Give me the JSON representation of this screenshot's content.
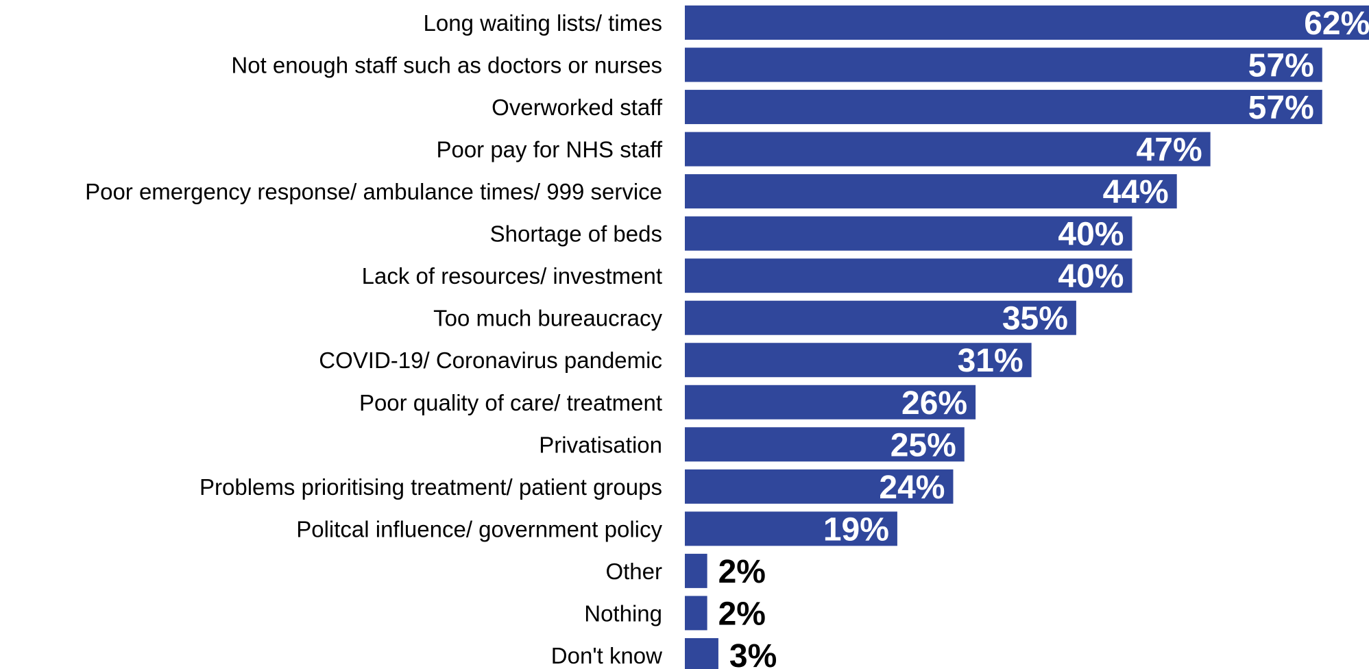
{
  "chart_data": {
    "type": "bar",
    "orientation": "horizontal",
    "categories": [
      "Long waiting lists/ times",
      "Not enough staff such as doctors or nurses",
      "Overworked staff",
      "Poor pay for NHS staff",
      "Poor emergency response/ ambulance times/ 999 service",
      "Shortage of beds",
      "Lack of resources/ investment",
      "Too much bureaucracy",
      "COVID-19/ Coronavirus pandemic",
      "Poor quality of care/ treatment",
      "Privatisation",
      "Problems prioritising treatment/ patient groups",
      "Politcal influence/ government policy",
      "Other",
      "Nothing",
      "Don't know"
    ],
    "values": [
      62,
      57,
      57,
      47,
      44,
      40,
      40,
      35,
      31,
      26,
      25,
      24,
      19,
      2,
      2,
      3
    ],
    "value_labels": [
      "62%",
      "57%",
      "57%",
      "47%",
      "44%",
      "40%",
      "40%",
      "35%",
      "31%",
      "26%",
      "25%",
      "24%",
      "19%",
      "2%",
      "2%",
      "3%"
    ],
    "unit": "%",
    "title": "",
    "xlabel": "",
    "ylabel": "",
    "xlim": [
      0,
      61
    ],
    "grid": false,
    "legend": "none",
    "colors": {
      "bar": "#30479B",
      "label_inside": "#FFFFFF",
      "label_outside": "#000000",
      "category_text": "#000000"
    }
  }
}
